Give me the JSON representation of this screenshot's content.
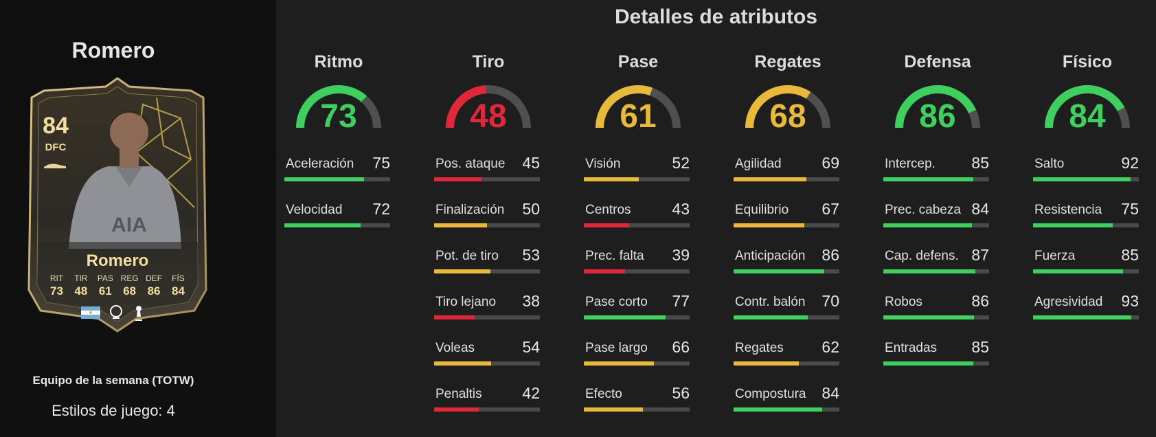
{
  "player": {
    "name": "Romero",
    "rating": "84",
    "position": "DFC",
    "card_type": "Equipo de la semana (TOTW)",
    "playstyles": "Estilos de juego: 4",
    "card_stats": [
      {
        "label": "RIT",
        "value": "73"
      },
      {
        "label": "TIR",
        "value": "48"
      },
      {
        "label": "PAS",
        "value": "61"
      },
      {
        "label": "REG",
        "value": "68"
      },
      {
        "label": "DEF",
        "value": "86"
      },
      {
        "label": "FÍS",
        "value": "84"
      }
    ]
  },
  "section_title": "Detalles de atributos",
  "colors": {
    "green": "#3fcf5f",
    "red": "#e0283a",
    "yellow": "#e8b93a",
    "track": "#4a4a4a",
    "gold": "#f2dfa0"
  },
  "categories": [
    {
      "name": "Ritmo",
      "value": 73,
      "stats": [
        {
          "name": "Aceleración",
          "value": 75
        },
        {
          "name": "Velocidad",
          "value": 72
        }
      ]
    },
    {
      "name": "Tiro",
      "value": 48,
      "stats": [
        {
          "name": "Pos. ataque",
          "value": 45
        },
        {
          "name": "Finalización",
          "value": 50
        },
        {
          "name": "Pot. de tiro",
          "value": 53
        },
        {
          "name": "Tiro lejano",
          "value": 38
        },
        {
          "name": "Voleas",
          "value": 54
        },
        {
          "name": "Penaltis",
          "value": 42
        }
      ]
    },
    {
      "name": "Pase",
      "value": 61,
      "stats": [
        {
          "name": "Visión",
          "value": 52
        },
        {
          "name": "Centros",
          "value": 43
        },
        {
          "name": "Prec. falta",
          "value": 39
        },
        {
          "name": "Pase corto",
          "value": 77
        },
        {
          "name": "Pase largo",
          "value": 66
        },
        {
          "name": "Efecto",
          "value": 56
        }
      ]
    },
    {
      "name": "Regates",
      "value": 68,
      "stats": [
        {
          "name": "Agilidad",
          "value": 69
        },
        {
          "name": "Equilibrio",
          "value": 67
        },
        {
          "name": "Anticipación",
          "value": 86
        },
        {
          "name": "Contr. balón",
          "value": 70
        },
        {
          "name": "Regates",
          "value": 62
        },
        {
          "name": "Compostura",
          "value": 84
        }
      ]
    },
    {
      "name": "Defensa",
      "value": 86,
      "stats": [
        {
          "name": "Intercep.",
          "value": 85
        },
        {
          "name": "Prec. cabeza",
          "value": 84
        },
        {
          "name": "Cap. defens.",
          "value": 87
        },
        {
          "name": "Robos",
          "value": 86
        },
        {
          "name": "Entradas",
          "value": 85
        }
      ]
    },
    {
      "name": "Físico",
      "value": 84,
      "stats": [
        {
          "name": "Salto",
          "value": 92
        },
        {
          "name": "Resistencia",
          "value": 75
        },
        {
          "name": "Fuerza",
          "value": 85
        },
        {
          "name": "Agresividad",
          "value": 93
        }
      ]
    }
  ]
}
